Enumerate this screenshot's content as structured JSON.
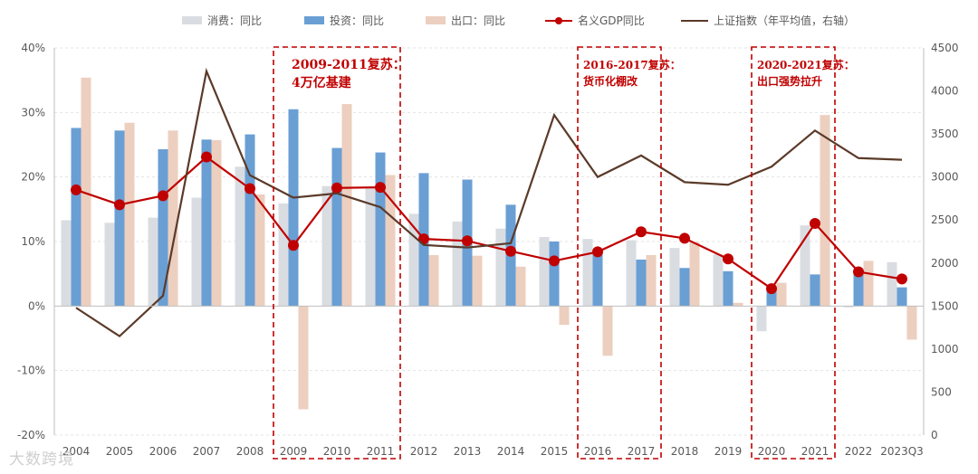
{
  "chart_data": {
    "type": "bar+line",
    "categories": [
      "2004",
      "2005",
      "2006",
      "2007",
      "2008",
      "2009",
      "2010",
      "2011",
      "2012",
      "2013",
      "2014",
      "2015",
      "2016",
      "2017",
      "2018",
      "2019",
      "2020",
      "2021",
      "2022",
      "2023Q3"
    ],
    "series": [
      {
        "name": "消费：同比",
        "kind": "bar",
        "axis": "left",
        "color": "#d9dde2",
        "values": [
          13.3,
          12.9,
          13.7,
          16.8,
          21.6,
          15.9,
          18.6,
          18.5,
          14.3,
          13.1,
          12.0,
          10.7,
          10.4,
          10.2,
          9.0,
          8.0,
          -3.9,
          12.5,
          -0.2,
          6.8
        ]
      },
      {
        "name": "投资：同比",
        "kind": "bar",
        "axis": "left",
        "color": "#6a9fd4",
        "values": [
          27.6,
          27.2,
          24.3,
          25.8,
          26.6,
          30.5,
          24.5,
          23.8,
          20.6,
          19.6,
          15.7,
          10.0,
          8.1,
          7.2,
          5.9,
          5.4,
          2.9,
          4.9,
          5.1,
          2.9
        ]
      },
      {
        "name": "出口：同比",
        "kind": "bar",
        "axis": "left",
        "color": "#eccfbf",
        "values": [
          35.4,
          28.4,
          27.2,
          25.7,
          17.3,
          -16.0,
          31.3,
          20.3,
          7.9,
          7.8,
          6.1,
          -2.9,
          -7.7,
          7.9,
          9.9,
          0.5,
          3.6,
          29.6,
          7.0,
          -5.2
        ]
      },
      {
        "name": "名义GDP同比",
        "kind": "line",
        "axis": "left",
        "color": "#c00000",
        "values": [
          18.0,
          15.7,
          17.1,
          23.1,
          18.2,
          9.4,
          18.3,
          18.4,
          10.4,
          10.1,
          8.5,
          7.0,
          8.4,
          11.5,
          10.5,
          7.3,
          2.7,
          12.8,
          5.3,
          4.2
        ]
      },
      {
        "name": "上证指数（年平均值，右轴）",
        "kind": "line",
        "axis": "right",
        "color": "#5b3a29",
        "values": [
          1480,
          1150,
          1620,
          4230,
          3020,
          2760,
          2810,
          2650,
          2210,
          2180,
          2230,
          3720,
          3000,
          3250,
          2940,
          2910,
          3120,
          3540,
          3220,
          3200
        ]
      }
    ],
    "ylim": [
      -20,
      40
    ],
    "yticks_left": [
      "-20%",
      "-10%",
      "0%",
      "10%",
      "20%",
      "30%",
      "40%"
    ],
    "y2lim": [
      0,
      4500
    ],
    "yticks_right": [
      "0",
      "500",
      "1000",
      "1500",
      "2000",
      "2500",
      "3000",
      "3500",
      "4000",
      "4500"
    ],
    "annotations": [
      {
        "start": "2009",
        "end": "2011",
        "lines": [
          "2009-2011复苏：",
          "4万亿基建"
        ]
      },
      {
        "start": "2016",
        "end": "2017",
        "lines": [
          "2016-2017复苏：",
          "货币化棚改"
        ]
      },
      {
        "start": "2020",
        "end": "2021",
        "lines": [
          "2020-2021复苏：",
          "出口强势拉升"
        ]
      }
    ],
    "grid": true,
    "legend_position": "top"
  },
  "watermark": "大数跨境"
}
